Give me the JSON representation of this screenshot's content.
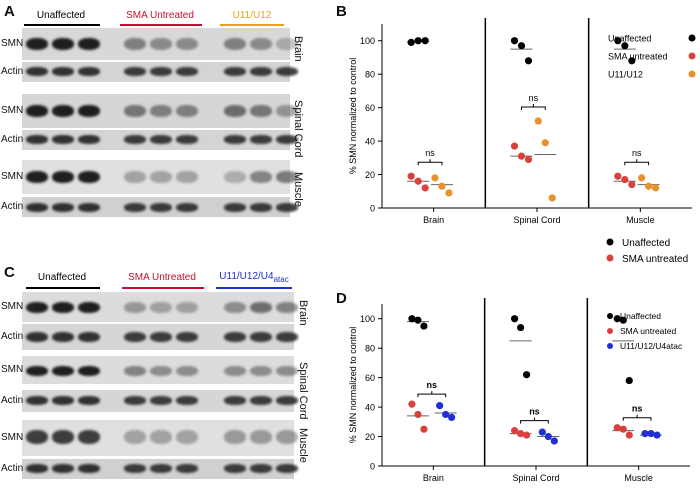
{
  "panels": {
    "A": {
      "letter": "A",
      "groups": [
        {
          "label": "Unaffected",
          "color": "#000000"
        },
        {
          "label": "SMA Untreated",
          "color": "#c8102e"
        },
        {
          "label": "U11/U12",
          "color": "#e8a317"
        }
      ],
      "tissues": [
        "Brain",
        "Spinal Cord",
        "Muscle"
      ],
      "row_labels": [
        "SMN",
        "Actin",
        "SMN",
        "Actin",
        "SMN",
        "Actin"
      ]
    },
    "B": {
      "letter": "B",
      "legend": [
        {
          "label": "Unaffected",
          "color": "#000000"
        },
        {
          "label": "SMA untreated",
          "color": "#d9413f"
        },
        {
          "label": "U11/U12",
          "color": "#e8912a"
        }
      ]
    },
    "C": {
      "letter": "C",
      "groups": [
        {
          "label": "Unaffected",
          "color": "#000000"
        },
        {
          "label": "SMA Untreated",
          "color": "#c8102e"
        },
        {
          "label": "U11/U12/U4",
          "sub": "atac",
          "color": "#1f2fd6"
        }
      ],
      "tissues": [
        "Brain",
        "Spinal Cord",
        "Muscle"
      ],
      "row_labels": [
        "SMN",
        "Actin",
        "SMN",
        "Actin",
        "SMN",
        "Actin"
      ]
    },
    "D": {
      "letter": "D",
      "legend_top": [
        {
          "label": "Unaffected",
          "color": "#000000"
        },
        {
          "label": "SMA untreated",
          "color": "#d9413f"
        }
      ],
      "legend": [
        {
          "label": "Unaffected",
          "color": "#000000"
        },
        {
          "label": "SMA untreated",
          "color": "#d9413f"
        },
        {
          "label": "U11/U12/U4atac",
          "color": "#1f2fd6"
        }
      ]
    }
  },
  "chart_data": [
    {
      "type": "scatter",
      "panel": "B",
      "ylabel": "% SMN normalized to control",
      "ylim": [
        0,
        110
      ],
      "yticks": [
        0,
        20,
        40,
        60,
        80,
        100
      ],
      "categories": [
        "Brain",
        "Spinal Cord",
        "Muscle"
      ],
      "series": [
        {
          "name": "Unaffected",
          "color": "#000000",
          "values": [
            [
              99,
              100,
              100
            ],
            [
              100,
              97,
              88
            ],
            [
              100,
              97,
              88
            ]
          ],
          "means": [
            99.5,
            95,
            95
          ]
        },
        {
          "name": "SMA untreated",
          "color": "#d9413f",
          "values": [
            [
              19,
              16,
              12
            ],
            [
              37,
              31,
              29
            ],
            [
              19,
              17,
              14
            ]
          ],
          "means": [
            16,
            31,
            16
          ]
        },
        {
          "name": "U11/U12",
          "color": "#e8912a",
          "values": [
            [
              18,
              13,
              9
            ],
            [
              52,
              39,
              6
            ],
            [
              18,
              13,
              12
            ]
          ],
          "means": [
            14,
            32,
            14
          ]
        }
      ],
      "annotations": [
        {
          "text": "ns",
          "category": "Brain"
        },
        {
          "text": "ns",
          "category": "Spinal Cord"
        },
        {
          "text": "ns",
          "category": "Muscle"
        }
      ]
    },
    {
      "type": "scatter",
      "panel": "D",
      "ylabel": "% SMN normalized to control",
      "ylim": [
        0,
        110
      ],
      "yticks": [
        0,
        20,
        40,
        60,
        80,
        100
      ],
      "categories": [
        "Brain",
        "Spinal Cord",
        "Muscle"
      ],
      "series": [
        {
          "name": "Unaffected",
          "color": "#000000",
          "values": [
            [
              100,
              99,
              95
            ],
            [
              100,
              94,
              62
            ],
            [
              100,
              99,
              58
            ]
          ],
          "means": [
            98,
            85,
            85
          ]
        },
        {
          "name": "SMA untreated",
          "color": "#d9413f",
          "values": [
            [
              42,
              35,
              25
            ],
            [
              24,
              22,
              21
            ],
            [
              26,
              25,
              21
            ]
          ],
          "means": [
            34,
            22,
            24
          ]
        },
        {
          "name": "U11/U12/U4atac",
          "color": "#1f2fd6",
          "values": [
            [
              41,
              35,
              33
            ],
            [
              23,
              20,
              17
            ],
            [
              22,
              22,
              21
            ]
          ],
          "means": [
            36,
            20,
            21
          ]
        }
      ],
      "annotations": [
        {
          "text": "ns",
          "category": "Brain"
        },
        {
          "text": "ns",
          "category": "Spinal Cord"
        },
        {
          "text": "ns",
          "category": "Muscle"
        }
      ]
    }
  ]
}
